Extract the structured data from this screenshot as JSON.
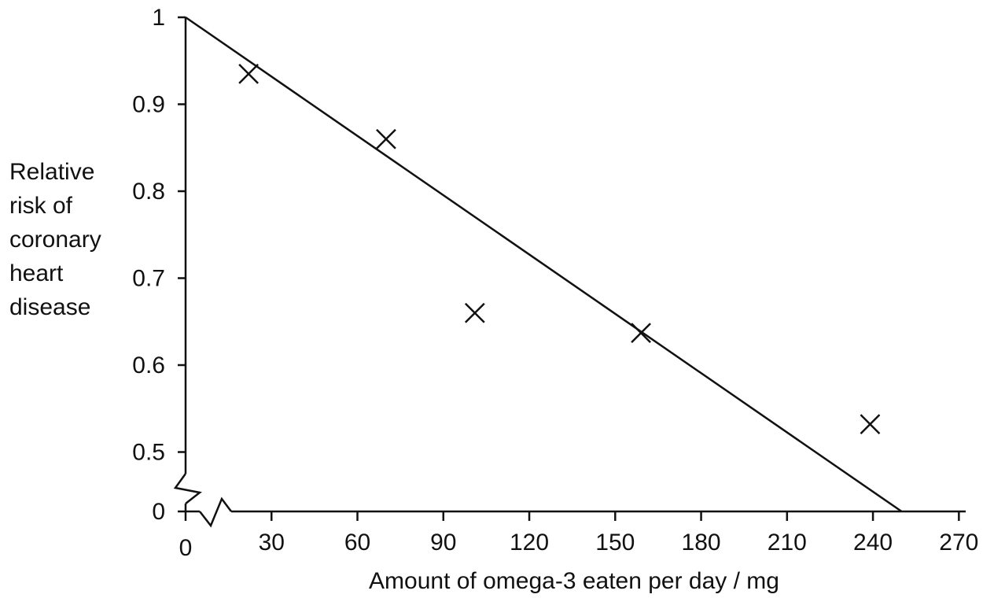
{
  "chart_data": {
    "type": "scatter",
    "ylabel_lines": [
      "Relative",
      "risk of",
      "coronary",
      "heart",
      "disease"
    ],
    "xlabel": "Amount of omega-3 eaten per day / mg",
    "x_ticks": [
      "0",
      "30",
      "60",
      "90",
      "120",
      "150",
      "180",
      "210",
      "240",
      "270"
    ],
    "y_ticks": [
      "1",
      "0.9",
      "0.8",
      "0.7",
      "0.6",
      "0.5",
      "0"
    ],
    "xlim": [
      0,
      270
    ],
    "ylim": [
      0.43,
      1.0
    ],
    "y_axis_break": true,
    "x_axis_break": true,
    "points": [
      {
        "x": 22,
        "y": 0.935
      },
      {
        "x": 70,
        "y": 0.86
      },
      {
        "x": 101,
        "y": 0.66
      },
      {
        "x": 159,
        "y": 0.637
      },
      {
        "x": 239,
        "y": 0.532
      }
    ],
    "trend_line": {
      "x": [
        0,
        250
      ],
      "y": [
        1.0,
        0
      ]
    },
    "marker": "x",
    "color": "#111111"
  }
}
